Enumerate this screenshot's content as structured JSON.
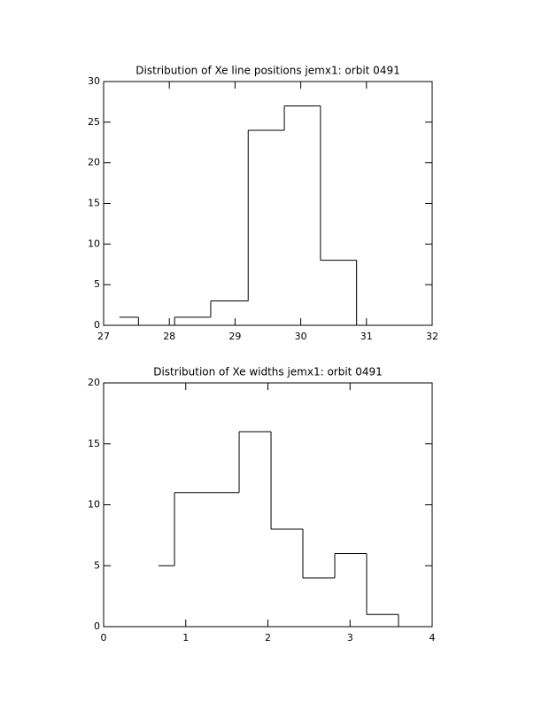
{
  "chart_data": [
    {
      "type": "histogram",
      "title": "Distribution of Xe line positions jemx1: orbit 0491",
      "bins": [
        27.24,
        27.53,
        28.08,
        28.63,
        29.2,
        29.75,
        30.3,
        30.85
      ],
      "values": [
        1,
        0,
        1,
        3,
        24,
        27,
        8
      ],
      "color": "#000000",
      "xlim": [
        27,
        32
      ],
      "xticks": [
        27,
        28,
        29,
        30,
        31,
        32
      ],
      "ylim": [
        0,
        30
      ],
      "yticks": [
        0,
        5,
        10,
        15,
        20,
        25,
        30
      ]
    },
    {
      "type": "histogram",
      "title": "Distribution of Xe widths jemx1: orbit 0491",
      "bins": [
        0.668,
        0.863,
        1.251,
        1.65,
        2.038,
        2.426,
        2.814,
        3.202,
        3.59
      ],
      "values": [
        5,
        11,
        11,
        16,
        8,
        4,
        6,
        1
      ],
      "color": "#000000",
      "xlim": [
        0,
        4
      ],
      "xticks": [
        0,
        1,
        2,
        3,
        4
      ],
      "ylim": [
        0,
        20
      ],
      "yticks": [
        0,
        5,
        10,
        15,
        20
      ]
    }
  ]
}
